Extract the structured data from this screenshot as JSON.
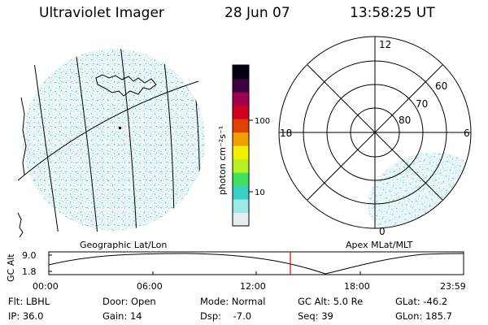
{
  "header": {
    "instrument": "Ultraviolet Imager",
    "date": "28 Jun 07",
    "time": "13:58:25 UT"
  },
  "geo_panel": {
    "caption": "Geographic Lat/Lon"
  },
  "apex_panel": {
    "caption": "Apex MLat/MLT",
    "mlt_labels": {
      "top": "12",
      "left": "18",
      "right": "6",
      "bottom": "0"
    },
    "mlat_labels": [
      "60",
      "70",
      "80"
    ]
  },
  "colorbar": {
    "unit_label": "photon cm⁻²s⁻¹",
    "ticks": [
      "100",
      "10"
    ],
    "scale": "log",
    "colors": [
      "#e6ecf0",
      "#9ee8e8",
      "#38d0c8",
      "#40e060",
      "#b8f020",
      "#f0f000",
      "#f0a000",
      "#e04000",
      "#d00020",
      "#a00050",
      "#400040",
      "#000010"
    ]
  },
  "altitude_plot": {
    "ylabel": "GC Alt",
    "yticks": [
      "9.0",
      "1.8"
    ],
    "xticks": [
      "00:00",
      "06:00",
      "12:00",
      "18:00",
      "23:59"
    ],
    "marker_color": "#e00000"
  },
  "footer": {
    "row1": {
      "filter": "Flt: LBHL",
      "door": "Door: Open",
      "mode": "Mode: Normal",
      "gc_alt": "GC Alt: 5.0 Re",
      "glat": "GLat: -46.2"
    },
    "row2": {
      "ip": "IP: 36.0",
      "gain": "Gain: 14",
      "dsp": "Dsp:    -7.0",
      "seq": "Seq: 39",
      "glon": "GLon: 185.7"
    }
  }
}
